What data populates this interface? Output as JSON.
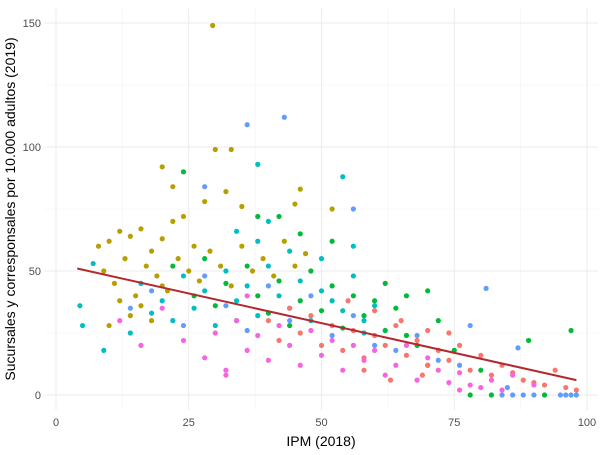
{
  "chart_data": {
    "type": "scatter",
    "xlabel": "IPM (2018)",
    "ylabel": "Sucursales y corresponsales por 10.000 adultos (2019)",
    "xlim": [
      0,
      100
    ],
    "ylim": [
      0,
      150
    ],
    "xticks": [
      "0",
      "25",
      "50",
      "75",
      "100"
    ],
    "yticks": [
      "0",
      "50",
      "100",
      "150"
    ],
    "grid": true,
    "legend": "none",
    "palette": [
      "#B79F00",
      "#00BFC4",
      "#00BA38",
      "#F8766D",
      "#F564E3",
      "#619CFF"
    ],
    "points": [
      [
        29.5,
        149,
        0
      ],
      [
        43,
        112,
        5
      ],
      [
        36,
        109,
        5
      ],
      [
        38,
        93,
        1
      ],
      [
        33,
        99,
        0
      ],
      [
        30,
        99,
        0
      ],
      [
        20,
        92,
        0
      ],
      [
        24,
        90,
        2
      ],
      [
        54,
        88,
        1
      ],
      [
        56,
        75,
        5
      ],
      [
        22,
        84,
        0
      ],
      [
        28,
        84,
        5
      ],
      [
        32,
        82,
        0
      ],
      [
        46,
        83,
        0
      ],
      [
        45,
        77,
        0
      ],
      [
        28,
        78,
        0
      ],
      [
        35,
        76,
        0
      ],
      [
        52,
        75,
        0
      ],
      [
        42,
        72,
        2
      ],
      [
        40,
        70,
        1
      ],
      [
        8,
        60,
        0
      ],
      [
        10,
        62,
        0
      ],
      [
        12,
        66,
        0
      ],
      [
        14,
        64,
        0
      ],
      [
        16,
        67,
        0
      ],
      [
        18,
        58,
        0
      ],
      [
        20,
        63,
        0
      ],
      [
        22,
        70,
        0
      ],
      [
        24,
        72,
        0
      ],
      [
        26,
        60,
        0
      ],
      [
        9,
        50,
        0
      ],
      [
        11,
        45,
        0
      ],
      [
        13,
        55,
        0
      ],
      [
        15,
        40,
        0
      ],
      [
        17,
        52,
        0
      ],
      [
        19,
        48,
        0
      ],
      [
        21,
        42,
        0
      ],
      [
        23,
        55,
        0
      ],
      [
        25,
        50,
        0
      ],
      [
        27,
        46,
        0
      ],
      [
        29,
        58,
        0
      ],
      [
        31,
        52,
        0
      ],
      [
        33,
        44,
        0
      ],
      [
        35,
        60,
        0
      ],
      [
        37,
        50,
        0
      ],
      [
        39,
        55,
        0
      ],
      [
        41,
        48,
        0
      ],
      [
        43,
        62,
        0
      ],
      [
        45,
        52,
        0
      ],
      [
        47,
        57,
        0
      ],
      [
        12,
        38,
        0
      ],
      [
        14,
        32,
        0
      ],
      [
        16,
        36,
        0
      ],
      [
        18,
        30,
        0
      ],
      [
        20,
        44,
        0
      ],
      [
        10,
        28,
        0
      ],
      [
        9,
        18,
        1
      ],
      [
        4.5,
        36,
        1
      ],
      [
        5,
        28,
        1
      ],
      [
        7,
        53,
        1
      ],
      [
        14,
        25,
        1
      ],
      [
        16,
        45,
        1
      ],
      [
        18,
        33,
        1
      ],
      [
        20,
        38,
        1
      ],
      [
        22,
        30,
        1
      ],
      [
        24,
        48,
        1
      ],
      [
        26,
        35,
        1
      ],
      [
        28,
        42,
        1
      ],
      [
        30,
        28,
        1
      ],
      [
        32,
        50,
        1
      ],
      [
        34,
        38,
        1
      ],
      [
        36,
        44,
        1
      ],
      [
        38,
        32,
        1
      ],
      [
        40,
        52,
        1
      ],
      [
        42,
        40,
        1
      ],
      [
        44,
        35,
        1
      ],
      [
        46,
        46,
        1
      ],
      [
        48,
        30,
        1
      ],
      [
        50,
        42,
        1
      ],
      [
        52,
        38,
        1
      ],
      [
        54,
        34,
        1
      ],
      [
        56,
        48,
        1
      ],
      [
        58,
        30,
        1
      ],
      [
        60,
        36,
        1
      ],
      [
        34,
        66,
        1
      ],
      [
        38,
        62,
        1
      ],
      [
        44,
        58,
        1
      ],
      [
        50,
        55,
        1
      ],
      [
        56,
        60,
        1
      ],
      [
        58,
        25,
        1
      ],
      [
        22,
        52,
        2
      ],
      [
        26,
        40,
        2
      ],
      [
        28,
        55,
        2
      ],
      [
        30,
        36,
        2
      ],
      [
        32,
        45,
        2
      ],
      [
        34,
        30,
        2
      ],
      [
        36,
        52,
        2
      ],
      [
        38,
        40,
        2
      ],
      [
        40,
        33,
        2
      ],
      [
        42,
        46,
        2
      ],
      [
        44,
        28,
        2
      ],
      [
        46,
        38,
        2
      ],
      [
        48,
        50,
        2
      ],
      [
        50,
        34,
        2
      ],
      [
        52,
        44,
        2
      ],
      [
        54,
        27,
        2
      ],
      [
        56,
        40,
        2
      ],
      [
        58,
        32,
        2
      ],
      [
        60,
        38,
        2
      ],
      [
        62,
        26,
        2
      ],
      [
        64,
        35,
        2
      ],
      [
        66,
        24,
        2
      ],
      [
        68,
        20,
        2
      ],
      [
        70,
        12,
        2
      ],
      [
        72,
        30,
        2
      ],
      [
        75,
        18,
        2
      ],
      [
        78,
        0,
        2
      ],
      [
        82,
        0,
        2
      ],
      [
        89,
        22,
        2
      ],
      [
        97,
        26,
        2
      ],
      [
        92,
        0,
        2
      ],
      [
        80,
        10,
        2
      ],
      [
        38,
        72,
        2
      ],
      [
        46,
        65,
        2
      ],
      [
        52,
        62,
        2
      ],
      [
        62,
        45,
        2
      ],
      [
        66,
        40,
        2
      ],
      [
        70,
        42,
        2
      ],
      [
        40,
        30,
        3
      ],
      [
        42,
        22,
        3
      ],
      [
        44,
        35,
        3
      ],
      [
        46,
        25,
        3
      ],
      [
        48,
        32,
        3
      ],
      [
        50,
        20,
        3
      ],
      [
        52,
        28,
        3
      ],
      [
        54,
        18,
        3
      ],
      [
        56,
        26,
        3
      ],
      [
        58,
        15,
        3
      ],
      [
        60,
        24,
        3
      ],
      [
        62,
        20,
        3
      ],
      [
        64,
        28,
        3
      ],
      [
        66,
        16,
        3
      ],
      [
        68,
        22,
        3
      ],
      [
        70,
        12,
        3
      ],
      [
        72,
        18,
        3
      ],
      [
        74,
        14,
        3
      ],
      [
        76,
        20,
        3
      ],
      [
        78,
        10,
        3
      ],
      [
        80,
        16,
        3
      ],
      [
        82,
        8,
        3
      ],
      [
        84,
        12,
        3
      ],
      [
        86,
        9,
        3
      ],
      [
        88,
        6,
        3
      ],
      [
        90,
        5,
        3
      ],
      [
        92,
        4,
        3
      ],
      [
        94,
        10,
        3
      ],
      [
        96,
        3,
        3
      ],
      [
        98,
        2,
        3
      ],
      [
        55,
        38,
        3
      ],
      [
        60,
        34,
        3
      ],
      [
        65,
        30,
        3
      ],
      [
        70,
        26,
        3
      ],
      [
        74,
        25,
        3
      ],
      [
        58,
        10,
        3
      ],
      [
        63,
        6,
        3
      ],
      [
        69,
        8,
        3
      ],
      [
        12,
        30,
        4
      ],
      [
        16,
        20,
        4
      ],
      [
        20,
        35,
        4
      ],
      [
        24,
        22,
        4
      ],
      [
        28,
        15,
        4
      ],
      [
        30,
        25,
        4
      ],
      [
        32,
        10,
        4
      ],
      [
        34,
        30,
        4
      ],
      [
        36,
        18,
        4
      ],
      [
        38,
        24,
        4
      ],
      [
        40,
        14,
        4
      ],
      [
        42,
        28,
        4
      ],
      [
        44,
        20,
        4
      ],
      [
        46,
        12,
        4
      ],
      [
        48,
        26,
        4
      ],
      [
        50,
        16,
        4
      ],
      [
        52,
        22,
        4
      ],
      [
        54,
        10,
        4
      ],
      [
        56,
        20,
        4
      ],
      [
        58,
        14,
        4
      ],
      [
        60,
        18,
        4
      ],
      [
        62,
        8,
        4
      ],
      [
        64,
        12,
        4
      ],
      [
        66,
        20,
        4
      ],
      [
        68,
        6,
        4
      ],
      [
        70,
        15,
        4
      ],
      [
        72,
        10,
        4
      ],
      [
        74,
        5,
        4
      ],
      [
        76,
        9,
        4
      ],
      [
        78,
        4,
        4
      ],
      [
        80,
        3,
        4
      ],
      [
        82,
        6,
        4
      ],
      [
        84,
        2,
        4
      ],
      [
        86,
        8,
        4
      ],
      [
        90,
        4,
        4
      ],
      [
        76,
        2,
        4
      ],
      [
        32,
        8,
        4
      ],
      [
        36,
        40,
        4
      ],
      [
        14,
        35,
        5
      ],
      [
        18,
        42,
        5
      ],
      [
        24,
        28,
        5
      ],
      [
        28,
        48,
        5
      ],
      [
        32,
        36,
        5
      ],
      [
        36,
        26,
        5
      ],
      [
        40,
        44,
        5
      ],
      [
        44,
        30,
        5
      ],
      [
        48,
        40,
        5
      ],
      [
        52,
        24,
        5
      ],
      [
        56,
        32,
        5
      ],
      [
        60,
        20,
        5
      ],
      [
        64,
        18,
        5
      ],
      [
        68,
        24,
        5
      ],
      [
        72,
        14,
        5
      ],
      [
        76,
        12,
        5
      ],
      [
        81,
        43,
        5
      ],
      [
        87,
        19,
        5
      ],
      [
        84,
        0,
        5
      ],
      [
        86,
        0,
        5
      ],
      [
        88,
        0,
        5
      ],
      [
        90,
        0,
        5
      ],
      [
        95,
        0,
        5
      ],
      [
        96,
        0,
        5
      ],
      [
        97,
        0,
        5
      ],
      [
        98,
        0,
        5
      ],
      [
        85,
        3,
        5
      ],
      [
        78,
        28,
        5
      ]
    ],
    "trend_line": {
      "x": [
        4,
        98
      ],
      "y": [
        51,
        6
      ],
      "color": "#B2292E"
    }
  }
}
